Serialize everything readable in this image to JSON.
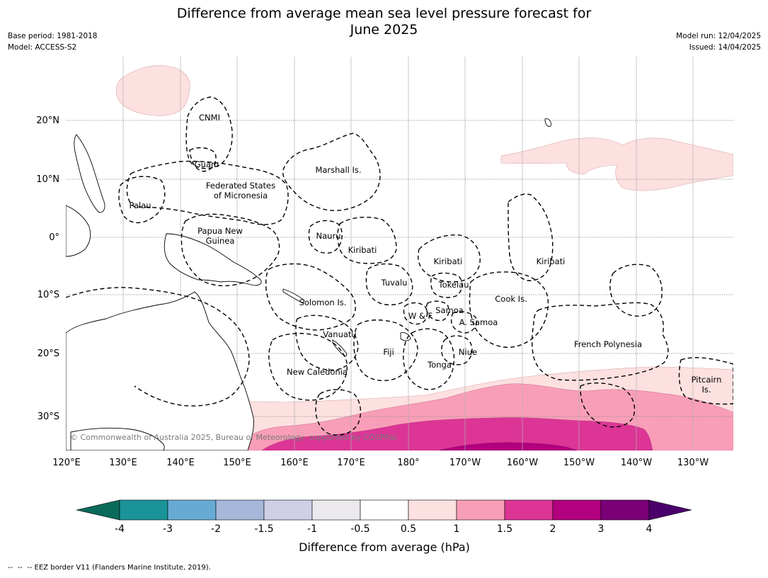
{
  "header": {
    "title": "Difference from average mean sea level pressure forecast for\nJune 2025",
    "base_period": "Base period: 1981-2018",
    "model": "Model: ACCESS-S2",
    "model_run": "Model run: 12/04/2025",
    "issued": "Issued: 14/04/2025"
  },
  "map": {
    "lat_ticks": [
      "20°N",
      "10°N",
      "0°",
      "10°S",
      "20°S",
      "30°S"
    ],
    "lon_ticks": [
      "120°E",
      "130°E",
      "140°E",
      "150°E",
      "160°E",
      "170°E",
      "180°",
      "170°W",
      "160°W",
      "150°W",
      "140°W",
      "130°W"
    ],
    "region_labels": [
      {
        "id": "cnmi",
        "text": "CNMI"
      },
      {
        "id": "guam",
        "text": "Guam"
      },
      {
        "id": "marshall",
        "text": "Marshall Is."
      },
      {
        "id": "palau",
        "text": "Palau"
      },
      {
        "id": "fsm",
        "text": "Federated States\nof Micronesia"
      },
      {
        "id": "nauru",
        "text": "Nauru"
      },
      {
        "id": "png",
        "text": "Papua New\nGuinea"
      },
      {
        "id": "kiribati1",
        "text": "Kiribati"
      },
      {
        "id": "kiribati2",
        "text": "Kiribati"
      },
      {
        "id": "kiribati3",
        "text": "Kiribati"
      },
      {
        "id": "tuvalu",
        "text": "Tuvalu"
      },
      {
        "id": "tokelau",
        "text": "Tokelau"
      },
      {
        "id": "cook",
        "text": "Cook Is."
      },
      {
        "id": "solomon",
        "text": "Solomon Is."
      },
      {
        "id": "samoa",
        "text": "Samoa"
      },
      {
        "id": "wf",
        "text": "W & F"
      },
      {
        "id": "asamoa",
        "text": "A. Samoa"
      },
      {
        "id": "vanuatu",
        "text": "Vanuatu"
      },
      {
        "id": "fiji",
        "text": "Fiji"
      },
      {
        "id": "niue",
        "text": "Niue"
      },
      {
        "id": "tonga",
        "text": "Tonga"
      },
      {
        "id": "frpoly",
        "text": "French Polynesia"
      },
      {
        "id": "newcal",
        "text": "New Caledonia"
      },
      {
        "id": "pitcairn",
        "text": "Pitcairn\nIs."
      }
    ],
    "copyright": "© Commonwealth of Australia 2025, Bureau of Meteorology, supported by COSPPac"
  },
  "colorbar": {
    "colors": [
      "#0a6b5a",
      "#1a9399",
      "#67abd5",
      "#a5b8d9",
      "#cfd0e6",
      "#ebe9ee",
      "#ffffff",
      "#fde0e0",
      "#f99eb8",
      "#dc3596",
      "#b2007e",
      "#7b0078",
      "#4a006a"
    ],
    "tick_labels": [
      "-4",
      "-3",
      "-2",
      "-1.5",
      "-1",
      "-0.5",
      "0.5",
      "1",
      "1.5",
      "2",
      "3",
      "4"
    ],
    "label": "Difference from average (hPa)"
  },
  "footer": {
    "legend_text": "-- EEZ border V11 (Flanders Marine Institute, 2019)."
  }
}
